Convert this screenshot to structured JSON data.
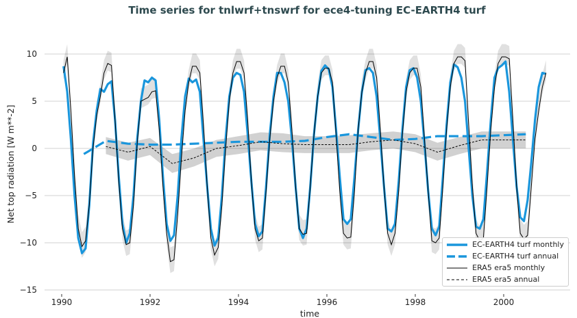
{
  "chart_data": {
    "type": "line",
    "title": "Time series for tnlwrf+tnswrf for ece4-tuning EC-EARTH4 turf",
    "xlabel": "time",
    "ylabel": "Net top radiation [W m**-2]",
    "xlim": [
      1989.6,
      2001.5
    ],
    "ylim": [
      -15,
      12.5
    ],
    "xticks": [
      "1990",
      "1992",
      "1994",
      "1996",
      "1998",
      "2000"
    ],
    "yticks": [
      "10",
      "5",
      "0",
      "−5",
      "−10",
      "−15"
    ],
    "grid": "horizontal",
    "legend_position": "lower-right",
    "colors": {
      "model": "#1a96dc",
      "era5": "#000000",
      "band": "#c8c8c8"
    },
    "monthly_start": 1990,
    "series": [
      {
        "name": "EC-EARTH4 turf monthly",
        "style": "solid-thick",
        "color": "#1a96dc",
        "monthly": [
          [
            8.7,
            6.0,
            1.0,
            -5.0,
            -9.5,
            -11.1,
            -10.6,
            -6.0,
            0.5,
            4.0,
            6.3,
            6.0
          ],
          [
            6.8,
            7.1,
            3.0,
            -3.0,
            -8.0,
            -10.0,
            -9.0,
            -5.0,
            1.0,
            5.0,
            7.2,
            7.0
          ],
          [
            7.5,
            7.2,
            3.0,
            -3.0,
            -8.0,
            -9.8,
            -9.2,
            -5.0,
            1.0,
            5.5,
            7.4,
            7.0
          ],
          [
            7.3,
            6.0,
            1.0,
            -4.0,
            -8.5,
            -10.3,
            -9.5,
            -5.0,
            1.0,
            5.5,
            7.5,
            8.0
          ],
          [
            7.8,
            6.0,
            1.5,
            -3.5,
            -8.0,
            -9.3,
            -8.8,
            -4.0,
            1.5,
            5.5,
            8.0,
            8.0
          ],
          [
            7.0,
            5.0,
            1.0,
            -4.0,
            -8.5,
            -9.5,
            -8.5,
            -4.0,
            1.5,
            5.5,
            8.2,
            8.8
          ],
          [
            8.4,
            6.5,
            2.0,
            -3.0,
            -7.5,
            -8.0,
            -7.5,
            -3.0,
            2.0,
            6.0,
            8.3,
            8.5
          ],
          [
            8.0,
            5.5,
            1.0,
            -4.0,
            -8.5,
            -8.8,
            -8.0,
            -3.5,
            2.0,
            6.5,
            8.3,
            8.5
          ],
          [
            7.5,
            5.0,
            0.5,
            -4.5,
            -8.5,
            -9.2,
            -8.3,
            -3.0,
            2.5,
            7.0,
            8.9,
            8.6
          ],
          [
            7.5,
            5.0,
            0.0,
            -5.0,
            -8.3,
            -8.5,
            -7.5,
            -2.5,
            3.0,
            7.5,
            8.5,
            8.8
          ],
          [
            9.2,
            6.0,
            1.0,
            -4.0,
            -7.3,
            -7.7,
            -5.5,
            -1.5,
            3.0,
            6.5,
            8.0,
            7.9
          ]
        ]
      },
      {
        "name": "EC-EARTH4 turf annual",
        "style": "dashed-thick",
        "color": "#1a96dc",
        "x": [
          1990.5,
          1991,
          1991.5,
          1992,
          1992.5,
          1993,
          1993.5,
          1994,
          1994.5,
          1995,
          1995.5,
          1996,
          1996.5,
          1997,
          1997.5,
          1998,
          1998.5,
          1999,
          1999.5,
          2000,
          2000.5
        ],
        "y": [
          -0.6,
          0.8,
          0.5,
          0.4,
          0.4,
          0.5,
          0.6,
          0.7,
          0.7,
          0.7,
          0.8,
          1.2,
          1.5,
          1.2,
          0.9,
          1.0,
          1.3,
          1.3,
          1.3,
          1.4,
          1.5
        ]
      },
      {
        "name": "ERA5 era5 monthly",
        "style": "solid-thin",
        "color": "#000000",
        "spread": 1.5,
        "monthly": [
          [
            8.0,
            9.7,
            4.0,
            -3.0,
            -8.5,
            -10.4,
            -9.8,
            -6.0,
            0.0,
            3.5,
            5.5,
            8.0
          ],
          [
            9.0,
            8.8,
            3.0,
            -3.5,
            -8.5,
            -10.2,
            -10.0,
            -6.0,
            0.5,
            5.0,
            5.2,
            5.4
          ],
          [
            6.0,
            6.1,
            2.0,
            -4.0,
            -9.0,
            -12.0,
            -11.8,
            -7.0,
            -1.0,
            4.0,
            7.0,
            8.7
          ],
          [
            8.7,
            8.0,
            2.5,
            -4.0,
            -9.5,
            -11.3,
            -10.5,
            -6.0,
            0.0,
            5.0,
            8.0,
            9.2
          ],
          [
            9.2,
            8.0,
            3.0,
            -3.5,
            -8.5,
            -9.8,
            -9.5,
            -4.5,
            1.0,
            5.0,
            7.5,
            8.7
          ],
          [
            8.7,
            7.0,
            2.0,
            -4.0,
            -8.5,
            -9.1,
            -9.0,
            -4.0,
            1.5,
            5.5,
            8.0,
            8.5
          ],
          [
            8.5,
            7.0,
            1.5,
            -4.5,
            -9.0,
            -9.5,
            -9.4,
            -4.5,
            2.0,
            6.0,
            8.0,
            9.2
          ],
          [
            9.2,
            7.5,
            2.0,
            -4.0,
            -9.0,
            -10.2,
            -9.0,
            -4.5,
            1.5,
            6.0,
            8.0,
            8.5
          ],
          [
            8.5,
            6.5,
            1.0,
            -4.5,
            -9.8,
            -10.0,
            -9.5,
            -4.0,
            2.0,
            6.5,
            9.0,
            9.7
          ],
          [
            9.7,
            9.3,
            2.5,
            -4.0,
            -9.0,
            -9.8,
            -9.5,
            -4.0,
            2.0,
            6.5,
            9.0,
            9.7
          ],
          [
            9.7,
            9.5,
            3.0,
            -4.0,
            -9.0,
            -9.6,
            -9.2,
            -4.0,
            1.0,
            4.0,
            6.5,
            8.0
          ]
        ]
      },
      {
        "name": "ERA5 era5 annual",
        "style": "dashed-thin",
        "color": "#000000",
        "x": [
          1991,
          1991.5,
          1992,
          1992.5,
          1993,
          1993.5,
          1994,
          1994.5,
          1995,
          1995.5,
          1996,
          1996.5,
          1997,
          1997.5,
          1998,
          1998.5,
          1999,
          1999.5,
          2000,
          2000.5
        ],
        "y": [
          0.2,
          -0.4,
          0.2,
          -1.6,
          -1.0,
          0.0,
          0.3,
          0.7,
          0.5,
          0.4,
          0.4,
          0.4,
          0.7,
          0.9,
          0.5,
          -0.4,
          0.3,
          0.9,
          0.9,
          0.9
        ],
        "band_low": [
          -0.6,
          -1.3,
          -0.7,
          -2.6,
          -1.9,
          -0.9,
          -0.6,
          -0.2,
          -0.4,
          -0.5,
          -0.5,
          -0.5,
          -0.2,
          0.0,
          -0.4,
          -1.3,
          -0.6,
          0.0,
          0.0,
          0.0
        ],
        "band_high": [
          1.2,
          0.6,
          1.1,
          -0.6,
          0.0,
          0.9,
          1.3,
          1.7,
          1.6,
          1.3,
          1.3,
          1.4,
          1.6,
          1.8,
          1.5,
          0.6,
          1.2,
          1.8,
          1.8,
          1.8
        ]
      }
    ]
  }
}
